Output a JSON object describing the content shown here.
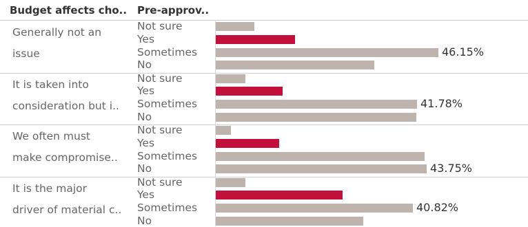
{
  "header": {
    "col1": "Budget affects cho..",
    "col2": "Pre-approv.."
  },
  "colors": {
    "yes": "#c1103b",
    "other": "#bfb3ae"
  },
  "chart_data": {
    "type": "bar",
    "orientation": "horizontal",
    "groups": [
      {
        "label": "Generally not an issue",
        "label_lines": [
          "Generally not an",
          "issue"
        ],
        "bars": [
          {
            "category": "Not sure",
            "value": 8.0
          },
          {
            "category": "Yes",
            "value": 16.4
          },
          {
            "category": "Sometimes",
            "value": 46.15,
            "value_label": "46.15%"
          },
          {
            "category": "No",
            "value": 32.8
          }
        ]
      },
      {
        "label": "It is taken into consideration but i..",
        "label_lines": [
          "It is taken into",
          "consideration but i.."
        ],
        "bars": [
          {
            "category": "Not sure",
            "value": 6.2
          },
          {
            "category": "Yes",
            "value": 13.9
          },
          {
            "category": "Sometimes",
            "value": 41.78,
            "value_label": "41.78%"
          },
          {
            "category": "No",
            "value": 41.5
          }
        ]
      },
      {
        "label": "We often must make compromise..",
        "label_lines": [
          "We often must",
          "make compromise.."
        ],
        "bars": [
          {
            "category": "Not sure",
            "value": 3.2
          },
          {
            "category": "Yes",
            "value": 13.2
          },
          {
            "category": "Sometimes",
            "value": 43.3
          },
          {
            "category": "No",
            "value": 43.75,
            "value_label": "43.75%"
          }
        ]
      },
      {
        "label": "It is the major driver of material c..",
        "label_lines": [
          "It is the major",
          "driver of material c.."
        ],
        "bars": [
          {
            "category": "Not sure",
            "value": 6.2
          },
          {
            "category": "Yes",
            "value": 26.3
          },
          {
            "category": "Sometimes",
            "value": 40.82,
            "value_label": "40.82%"
          },
          {
            "category": "No",
            "value": 30.5
          }
        ]
      }
    ],
    "highlight_category": "Yes",
    "xlim": [
      0,
      50
    ],
    "grid": false
  }
}
